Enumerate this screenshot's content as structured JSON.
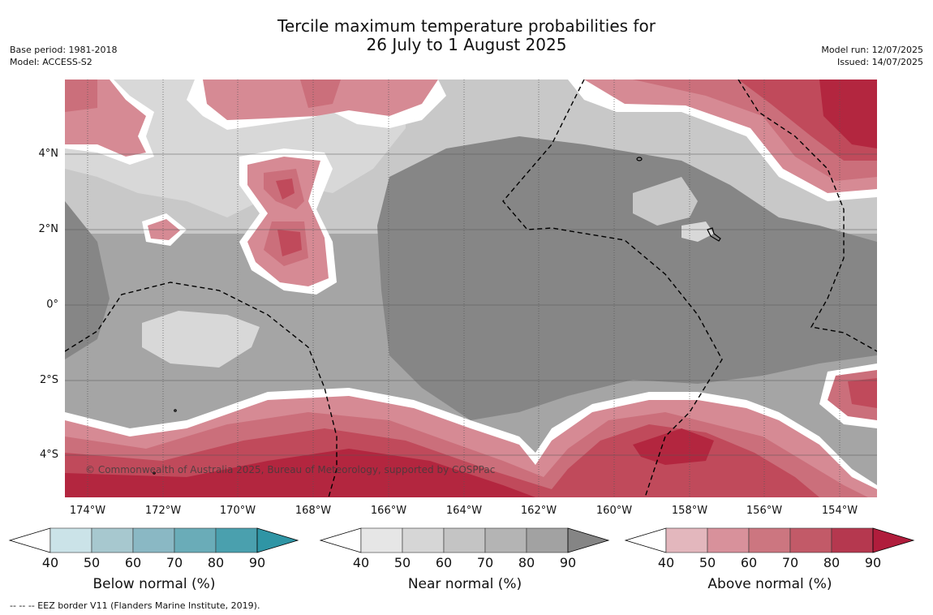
{
  "title_line1": "Tercile maximum temperature probabilities for",
  "title_line2": "26 July to 1 August 2025",
  "base_period": "Base period: 1981-2018",
  "model": "Model: ACCESS-S2",
  "model_run": "Model run: 12/07/2025",
  "issued": "Issued: 14/07/2025",
  "copyright": "© Commonwealth of Australia 2025, Bureau of Meteorology, supported by COSPPac",
  "footer": "--  --  -- EEZ border V11 (Flanders Marine Institute, 2019).",
  "x_ticks": [
    "174°W",
    "172°W",
    "170°W",
    "168°W",
    "166°W",
    "164°W",
    "162°W",
    "160°W",
    "158°W",
    "156°W",
    "154°W"
  ],
  "y_ticks": [
    "4°N",
    "2°N",
    "0°",
    "2°S",
    "4°S"
  ],
  "colorbars": [
    {
      "label": "Below normal (%)",
      "ticks": [
        "40",
        "50",
        "60",
        "70",
        "80",
        "90"
      ],
      "colors": [
        "#cbe3e8",
        "#a7c8cf",
        "#8ab8c4",
        "#6aacb8",
        "#4aa0ae",
        "#2f95a5"
      ],
      "under": "#ffffff"
    },
    {
      "label": "Near normal (%)",
      "ticks": [
        "40",
        "50",
        "60",
        "70",
        "80",
        "90"
      ],
      "colors": [
        "#e6e6e6",
        "#d6d6d6",
        "#c4c4c4",
        "#b4b4b4",
        "#a2a2a2",
        "#858585"
      ],
      "under": "#ffffff"
    },
    {
      "label": "Above normal (%)",
      "ticks": [
        "40",
        "50",
        "60",
        "70",
        "80",
        "90"
      ],
      "colors": [
        "#e3b7bd",
        "#d8919b",
        "#cc7680",
        "#c25a68",
        "#b5384f",
        "#b01d3c"
      ],
      "under": "#ffffff"
    }
  ],
  "map_colors": {
    "white": "#ffffff",
    "near40": "#d8d8d8",
    "near50": "#c8c8c8",
    "near60": "#a5a5a5",
    "near70": "#868686",
    "above40": "#e3b7bd",
    "above50": "#d68a94",
    "above60": "#cb6f7b",
    "above70": "#c04a5b",
    "above80": "#b3263f",
    "grid": "#555555",
    "eez": "#000000"
  }
}
